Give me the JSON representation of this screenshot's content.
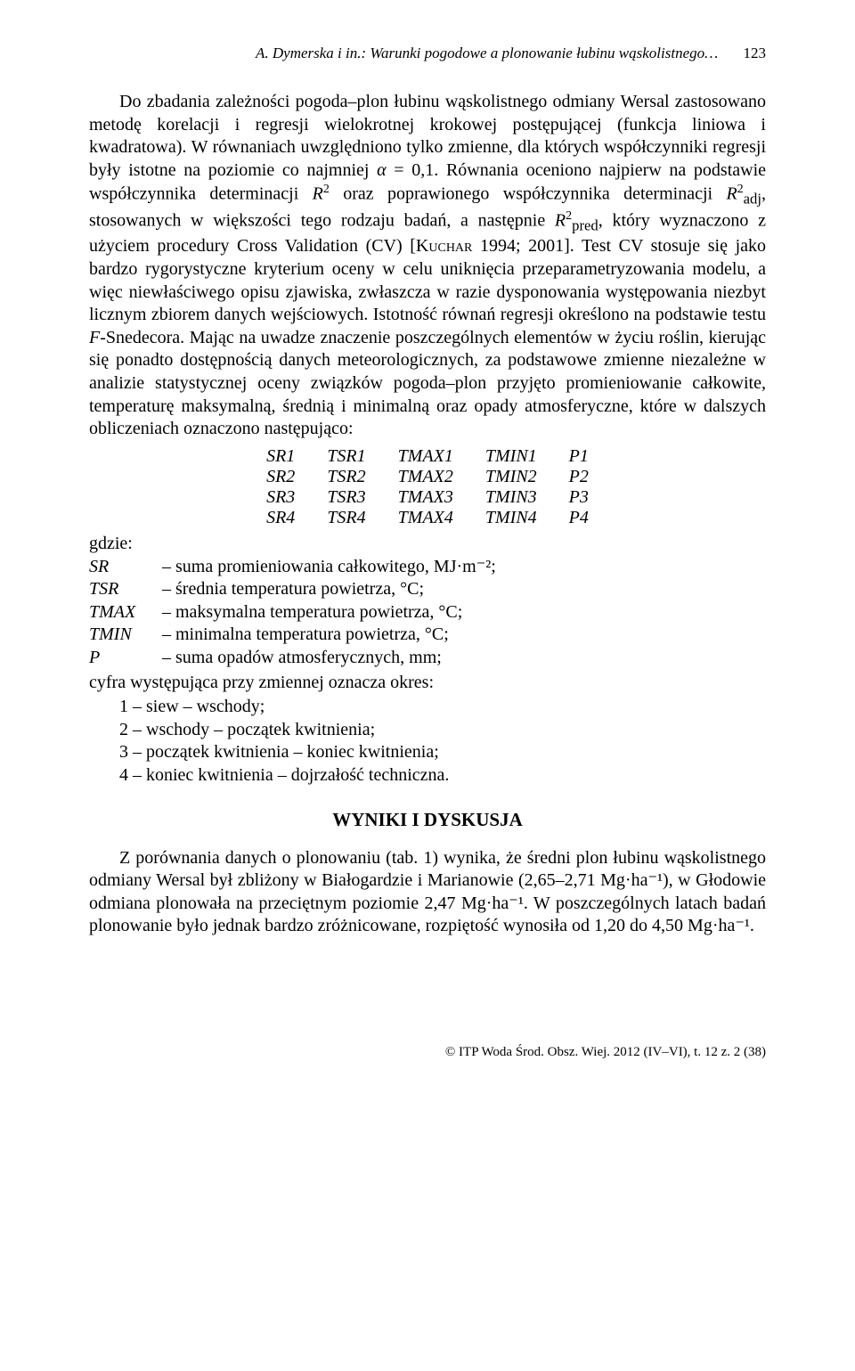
{
  "running_head": {
    "text": "A. Dymerska i in.: Warunki pogodowe a plonowanie łubinu wąskolistnego…",
    "page": "123"
  },
  "para1": "Do zbadania zależności pogoda–plon łubinu wąskolistnego odmiany Wersal zastosowano metodę korelacji i regresji wielokrotnej krokowej postępującej (funkcja liniowa i kwadratowa). W równaniach uwzględniono tylko zmienne, dla których współczynniki regresji były istotne na poziomie co najmniej α = 0,1. Równania oceniono najpierw na podstawie współczynnika determinacji R² oraz poprawionego współczynnika determinacji R²adj, stosowanych w większości tego rodzaju badań, a następnie R²pred, który wyznaczono z użyciem procedury Cross Validation (CV) [KUCHAR 1994; 2001]. Test CV stosuje się jako bardzo rygorystyczne kryterium oceny w celu uniknięcia przeparametryzowania modelu, a więc niewłaściwego opisu zjawiska, zwłaszcza w razie dysponowania występowania niezbyt licznym zbiorem danych wejściowych. Istotność równań regresji określono na podstawie testu F-Snedecora. Mając na uwadze znaczenie poszczególnych elementów w życiu roślin, kierując się ponadto dostępnością danych meteorologicznych, za podstawowe zmienne niezależne w analizie statystycznej oceny związków pogoda–plon przyjęto promieniowanie całkowite, temperaturę maksymalną, średnią i minimalną oraz opady atmosferyczne, które w dalszych obliczeniach oznaczono następująco:",
  "var_table": [
    [
      "SR1",
      "TSR1",
      "TMAX1",
      "TMIN1",
      "P1"
    ],
    [
      "SR2",
      "TSR2",
      "TMAX2",
      "TMIN2",
      "P2"
    ],
    [
      "SR3",
      "TSR3",
      "TMAX3",
      "TMIN3",
      "P3"
    ],
    [
      "SR4",
      "TSR4",
      "TMAX4",
      "TMIN4",
      "P4"
    ]
  ],
  "where_label": "gdzie:",
  "defs": [
    {
      "sym": "SR",
      "desc": "– suma promieniowania całkowitego, MJ·m⁻²;"
    },
    {
      "sym": "TSR",
      "desc": "– średnia temperatura powietrza, °C;"
    },
    {
      "sym": "TMAX",
      "desc": "– maksymalna temperatura powietrza, °C;"
    },
    {
      "sym": "TMIN",
      "desc": "– minimalna temperatura powietrza, °C;"
    },
    {
      "sym": "P",
      "desc": "– suma opadów atmosferycznych, mm;"
    }
  ],
  "after_defs": "cyfra występująca przy zmiennej oznacza okres:",
  "periods": [
    "1 – siew – wschody;",
    "2 – wschody – początek kwitnienia;",
    "3 – początek kwitnienia – koniec kwitnienia;",
    "4 – koniec kwitnienia – dojrzałość techniczna."
  ],
  "section_heading": "WYNIKI I DYSKUSJA",
  "para2": "Z porównania danych o plonowaniu (tab. 1) wynika, że średni plon łubinu wąskolistnego odmiany Wersal był zbliżony w Białogardzie i Marianowie (2,65–2,71 Mg·ha⁻¹), w Głodowie odmiana plonowała na przeciętnym poziomie 2,47 Mg·ha⁻¹. W poszczególnych latach badań plonowanie było jednak bardzo zróżnicowane, rozpiętość wynosiła od 1,20 do 4,50 Mg·ha⁻¹.",
  "footer": "© ITP Woda Środ. Obsz. Wiej. 2012 (IV–VI), t. 12 z. 2 (38)"
}
